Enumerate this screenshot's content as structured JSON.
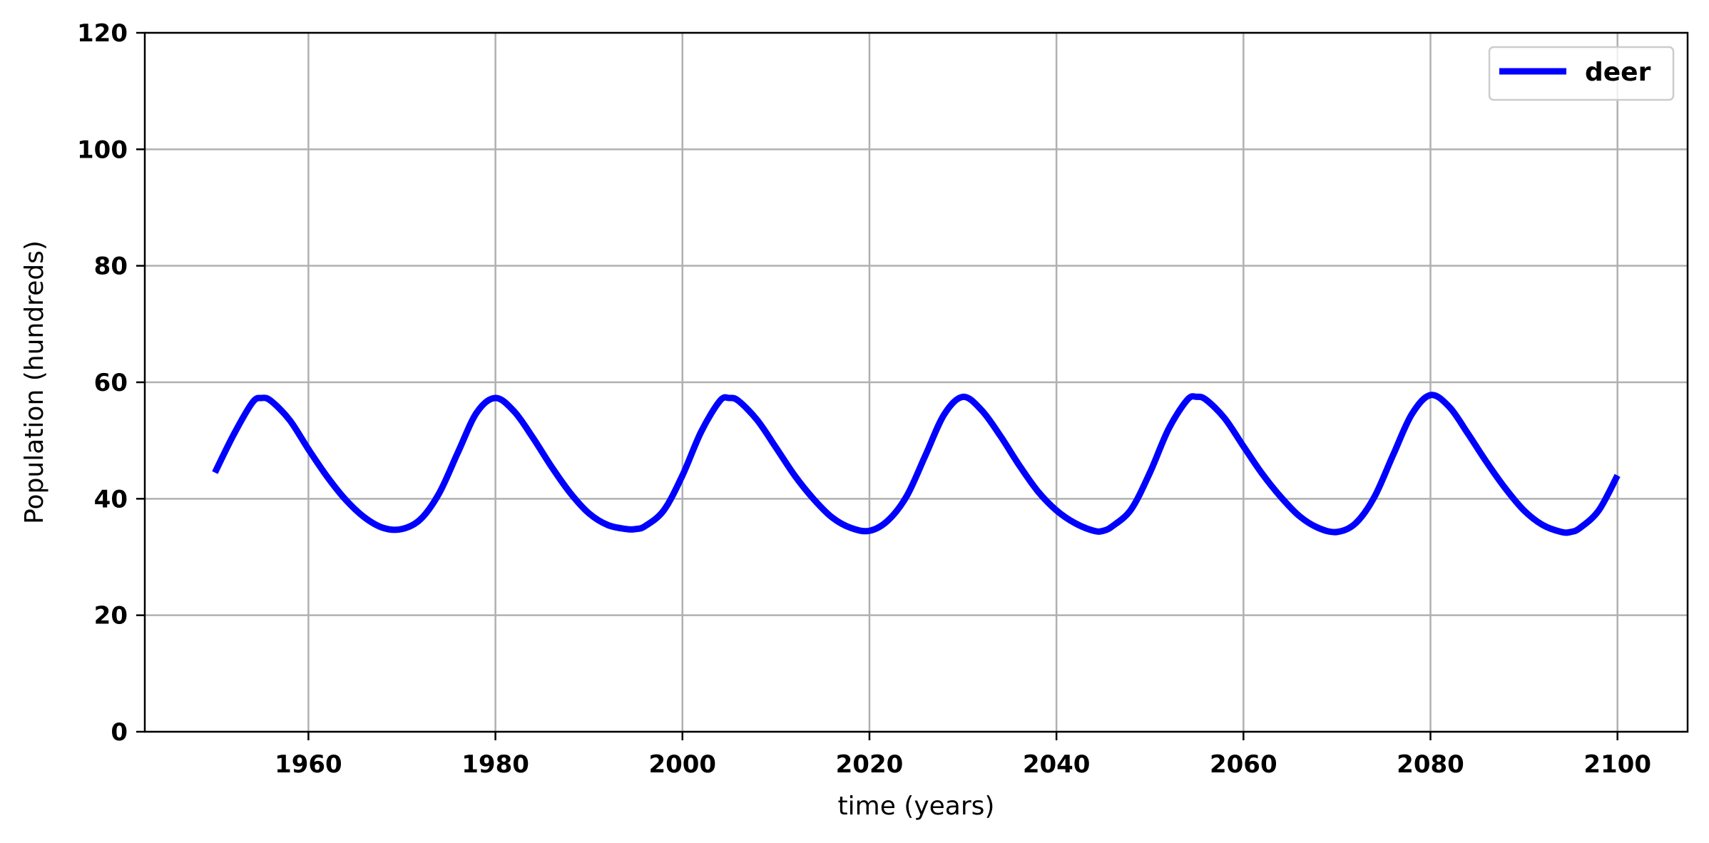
{
  "chart_data": {
    "type": "line",
    "title": "",
    "xlabel": "time (years)",
    "ylabel": "Population (hundreds)",
    "xlim": [
      1942.5,
      2107.5
    ],
    "ylim": [
      0,
      120
    ],
    "xticks": [
      1960,
      1980,
      2000,
      2020,
      2040,
      2060,
      2080,
      2100
    ],
    "yticks": [
      0,
      20,
      40,
      60,
      80,
      100,
      120
    ],
    "grid": true,
    "legend_position": "top-right",
    "series": [
      {
        "name": "deer",
        "color": "#0000ff",
        "x": [
          1950,
          1952,
          1954,
          1955,
          1956,
          1958,
          1960,
          1962,
          1964,
          1966,
          1968,
          1970,
          1972,
          1974,
          1976,
          1978,
          1980,
          1982,
          1984,
          1986,
          1988,
          1990,
          1992,
          1994,
          1995,
          1996,
          1998,
          2000,
          2002,
          2004,
          2005,
          2006,
          2008,
          2010,
          2012,
          2014,
          2016,
          2018,
          2020,
          2022,
          2024,
          2026,
          2028,
          2030,
          2032,
          2034,
          2036,
          2038,
          2040,
          2042,
          2044,
          2045,
          2046,
          2048,
          2050,
          2052,
          2054,
          2055,
          2056,
          2058,
          2060,
          2062,
          2064,
          2066,
          2068,
          2070,
          2072,
          2074,
          2076,
          2078,
          2080,
          2082,
          2084,
          2086,
          2088,
          2090,
          2092,
          2094,
          2095,
          2096,
          2098,
          2100
        ],
        "values": [
          44.5,
          51.0,
          56.5,
          57.3,
          56.8,
          53.5,
          48.5,
          43.8,
          39.8,
          36.8,
          35.0,
          34.8,
          36.5,
          41.0,
          48.0,
          54.8,
          57.3,
          55.0,
          50.5,
          45.5,
          41.0,
          37.5,
          35.5,
          34.8,
          34.8,
          35.3,
          38.0,
          44.0,
          51.5,
          56.8,
          57.3,
          56.8,
          53.5,
          48.8,
          44.0,
          40.0,
          36.8,
          35.0,
          34.5,
          36.3,
          40.5,
          47.5,
          54.5,
          57.5,
          55.2,
          50.8,
          45.8,
          41.3,
          38.0,
          35.8,
          34.5,
          34.5,
          35.3,
          38.2,
          44.5,
          52.0,
          57.0,
          57.5,
          57.0,
          53.8,
          49.0,
          44.3,
          40.3,
          37.0,
          35.0,
          34.3,
          35.8,
          40.3,
          47.5,
          54.5,
          57.8,
          55.8,
          51.2,
          46.3,
          41.8,
          38.0,
          35.5,
          34.3,
          34.3,
          35.0,
          38.0,
          44.0
        ]
      }
    ]
  }
}
